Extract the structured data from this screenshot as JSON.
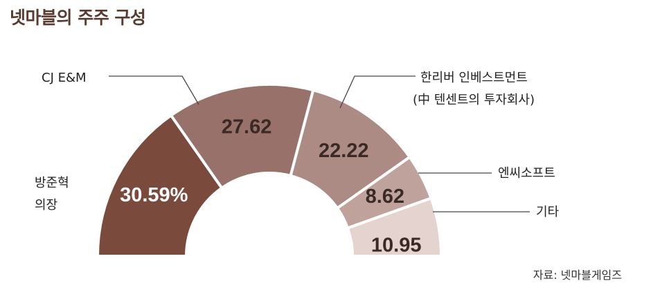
{
  "title": "넷마블의 주주 구성",
  "source": "자료: 넷마블게임즈",
  "chart_data": {
    "type": "pie",
    "subtype": "semi-donut",
    "unit": "%",
    "slices": [
      {
        "label_lines": [
          "방준혁",
          "의장"
        ],
        "value": 30.59,
        "display": "30.59%",
        "color": "#7a4a3c",
        "text_color": "#ffffff"
      },
      {
        "label_lines": [
          "CJ E&M"
        ],
        "value": 27.62,
        "display": "27.62",
        "color": "#98716a",
        "text_color": "#3a2a26"
      },
      {
        "label_lines": [
          "한리버 인베스트먼트",
          "(中 텐센트의 투자회사)"
        ],
        "value": 22.22,
        "display": "22.22",
        "color": "#ab8b84",
        "text_color": "#3a2a26"
      },
      {
        "label_lines": [
          "엔씨소프트"
        ],
        "value": 8.62,
        "display": "8.62",
        "color": "#bfa29b",
        "text_color": "#3a2a26"
      },
      {
        "label_lines": [
          "기타"
        ],
        "value": 10.95,
        "display": "10.95",
        "color": "#e4d3cf",
        "text_color": "#3a2a26"
      }
    ]
  }
}
